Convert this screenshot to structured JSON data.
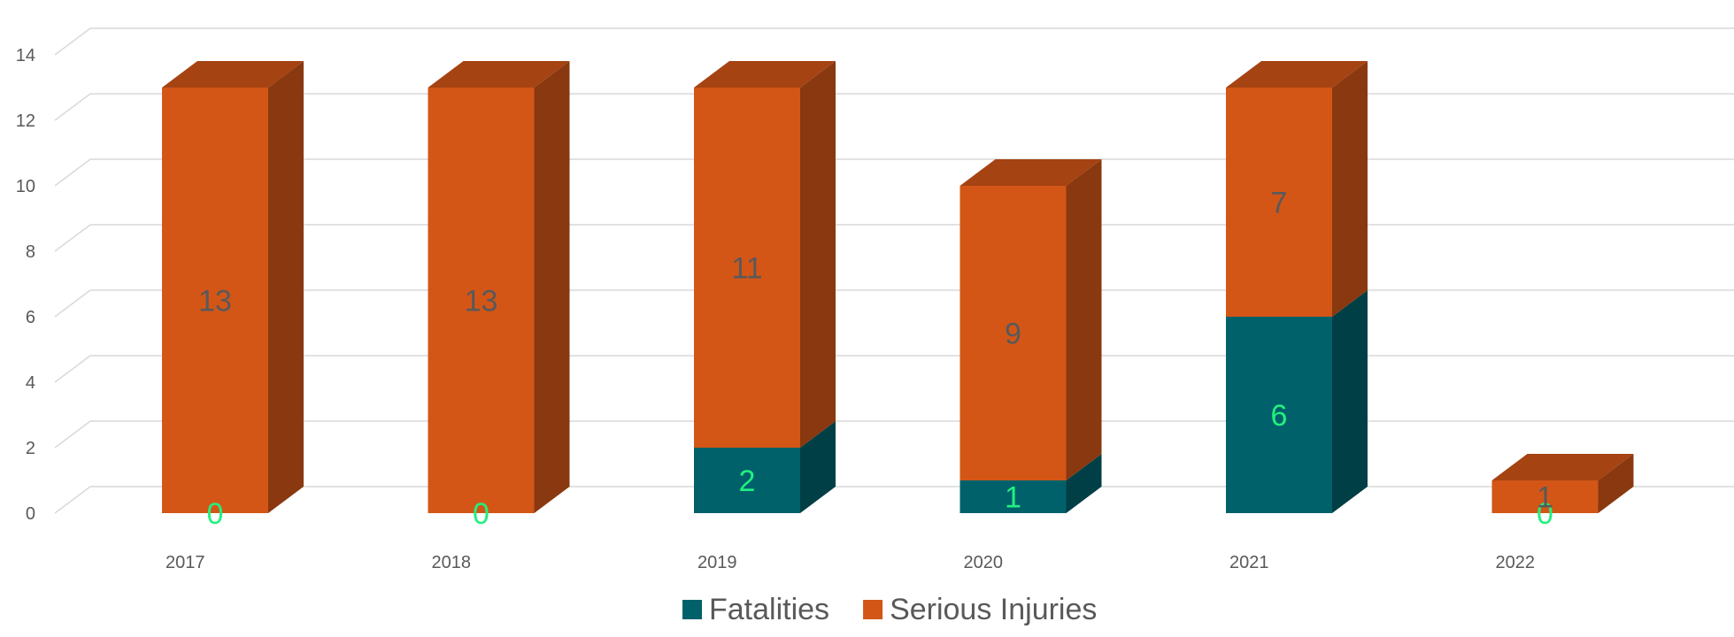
{
  "chart_data": {
    "type": "bar",
    "stacked": true,
    "style": "3d-column",
    "categories": [
      "2017",
      "2018",
      "2019",
      "2020",
      "2021",
      "2022"
    ],
    "series": [
      {
        "name": "Fatalities",
        "values": [
          0,
          0,
          2,
          1,
          6,
          0
        ],
        "color": "#00616B",
        "label_color": "#22F07E"
      },
      {
        "name": "Serious Injuries",
        "values": [
          13,
          13,
          11,
          9,
          7,
          1
        ],
        "color": "#D35617",
        "label_color": "#595959"
      }
    ],
    "yticks": [
      "0",
      "2",
      "4",
      "6",
      "8",
      "10",
      "12",
      "14"
    ],
    "ylim": [
      0,
      14
    ],
    "grid": true,
    "legend_position": "bottom",
    "title": "",
    "xlabel": "",
    "ylabel": ""
  }
}
